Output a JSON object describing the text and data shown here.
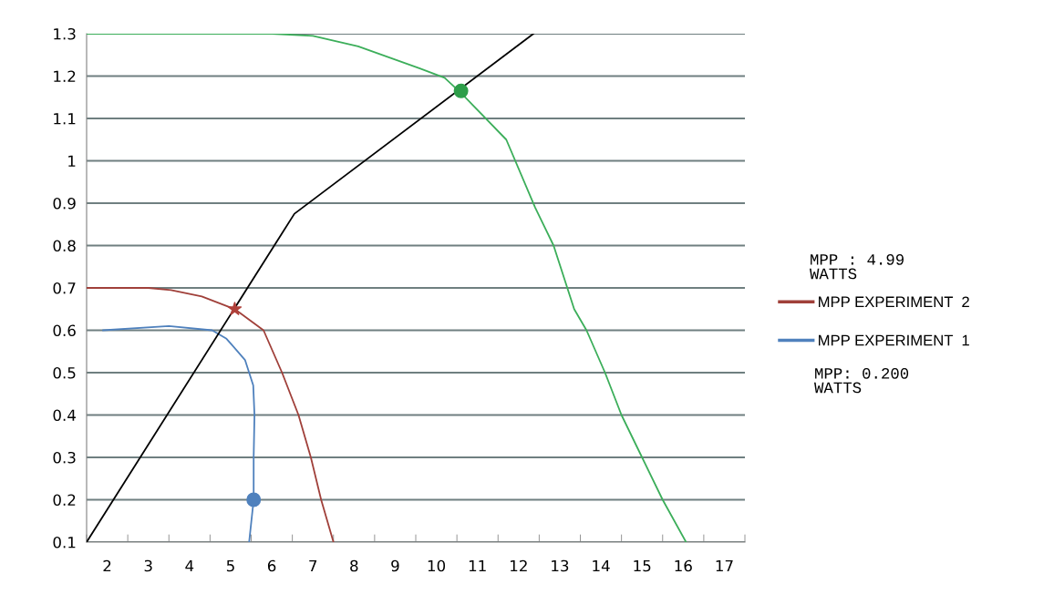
{
  "chart_data": {
    "type": "line",
    "xlim": [
      1.5,
      17.5
    ],
    "xticks": [
      {
        "value": 1.5,
        "label": null
      },
      {
        "value": 2,
        "label": "2"
      },
      {
        "value": 2.5,
        "label": null
      },
      {
        "value": 3,
        "label": "3"
      },
      {
        "value": 3.5,
        "label": null
      },
      {
        "value": 4,
        "label": "4"
      },
      {
        "value": 4.5,
        "label": null
      },
      {
        "value": 5,
        "label": "5"
      },
      {
        "value": 5.5,
        "label": null
      },
      {
        "value": 6,
        "label": "6"
      },
      {
        "value": 6.5,
        "label": null
      },
      {
        "value": 7,
        "label": "7"
      },
      {
        "value": 7.5,
        "label": null
      },
      {
        "value": 8,
        "label": "8"
      },
      {
        "value": 8.5,
        "label": null
      },
      {
        "value": 9,
        "label": "9"
      },
      {
        "value": 9.5,
        "label": null
      },
      {
        "value": 10,
        "label": "10"
      },
      {
        "value": 10.5,
        "label": null
      },
      {
        "value": 11,
        "label": "11"
      },
      {
        "value": 11.5,
        "label": null
      },
      {
        "value": 12,
        "label": "12"
      },
      {
        "value": 12.5,
        "label": null
      },
      {
        "value": 13,
        "label": "13"
      },
      {
        "value": 13.5,
        "label": null
      },
      {
        "value": 14,
        "label": "14"
      },
      {
        "value": 14.5,
        "label": null
      },
      {
        "value": 15,
        "label": "15"
      },
      {
        "value": 15.5,
        "label": null
      },
      {
        "value": 16,
        "label": "16"
      },
      {
        "value": 16.5,
        "label": null
      },
      {
        "value": 17,
        "label": "17"
      },
      {
        "value": 17.5,
        "label": null
      }
    ],
    "ylim": [
      0.1,
      1.3
    ],
    "yticks": [
      0.1,
      0.2,
      0.3,
      0.4,
      0.5,
      0.6,
      0.7,
      0.8,
      0.9,
      1,
      1.1,
      1.2,
      1.3
    ],
    "grid": "y",
    "legend": "right",
    "marker": "none",
    "line_style": "solid",
    "series": [
      {
        "color": "#3cae5a",
        "x": [
          1.5,
          4,
          6,
          7,
          8.1,
          9.6,
          10.2,
          10.6,
          11.7,
          12.4,
          12.85,
          13.35,
          13.65,
          14.1,
          14.5,
          15,
          15.5,
          16.07
        ],
        "values": [
          1.3,
          1.3,
          1.3,
          1.295,
          1.27,
          1.218,
          1.196,
          1.16,
          1.05,
          0.89,
          0.8,
          0.65,
          0.6,
          0.5,
          0.4,
          0.3,
          0.2,
          0.1
        ]
      },
      {
        "name": "MPP EXPERIMENT  2",
        "color": "#a0403a",
        "x": [
          1.5,
          3,
          3.55,
          4.3,
          5.1,
          5.8,
          6.25,
          6.65,
          6.95,
          7.2,
          7.5
        ],
        "values": [
          0.7,
          0.7,
          0.695,
          0.68,
          0.65,
          0.6,
          0.5,
          0.4,
          0.3,
          0.2,
          0.1
        ]
      },
      {
        "name": "MPP EXPERIMENT  1",
        "color": "#4f81bd",
        "x": [
          1.9,
          3.5,
          4.55,
          4.9,
          5.35,
          5.55,
          5.58,
          5.56,
          5.56,
          5.45
        ],
        "values": [
          0.6,
          0.61,
          0.6,
          0.58,
          0.53,
          0.47,
          0.4,
          0.3,
          0.2,
          0.1
        ]
      },
      {
        "color": "#000000",
        "x": [
          1.5,
          6.55,
          12.36
        ],
        "values": [
          0.1,
          0.875,
          1.3
        ]
      },
      {
        "type": "scatter",
        "marker": "circle",
        "color": "#2e9e4a",
        "x": [
          10.6
        ],
        "values": [
          1.165
        ]
      },
      {
        "type": "scatter",
        "marker": "star",
        "color": "#b0403a",
        "x": [
          5.1
        ],
        "values": [
          0.65
        ]
      },
      {
        "type": "scatter",
        "marker": "circle",
        "color": "#4f81bd",
        "x": [
          5.56
        ],
        "values": [
          0.2
        ]
      }
    ],
    "annotations": [
      "MPP : 4.99\nWATTS",
      "MPP: 0.200\nWATTS"
    ]
  }
}
